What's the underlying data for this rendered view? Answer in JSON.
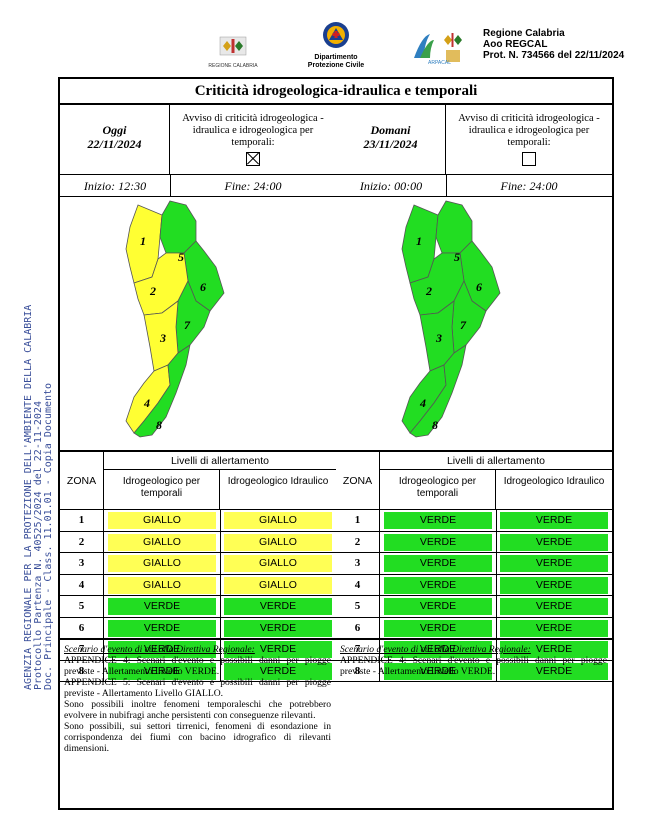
{
  "stamp": {
    "lines": [
      "AGENZIA REGIONALE PER LA PROTEZIONE DELL'AMBIENTE DELLA CALABRIA",
      "Protocollo Partenza N. 40525/2024 del 22-11-2024",
      "Doc. Principale - Class. 11.01.01 - Copia Documento"
    ]
  },
  "header": {
    "logo_regione_caption": "REGIONE CALABRIA",
    "logo_pc_caption_1": "Dipartimento",
    "logo_pc_caption_2": "Protezione Civile",
    "logo_arpa_caption": "ARPACAL",
    "text_1": "Regione Calabria",
    "text_2": "Aoo REGCAL",
    "text_3": "Prot. N. 734566 del 22/11/2024"
  },
  "title": "Criticità idrogeologica-idraulica e temporali",
  "days": [
    {
      "label": "Oggi",
      "date": "22/11/2024",
      "avviso": "Avviso di criticità idrogeologica - idraulica e idrogeologica per temporali:",
      "checked": true,
      "inizio": "Inizio: 12:30",
      "fine": "Fine: 24:00",
      "zone_colors": [
        "#ffff33",
        "#ffff33",
        "#ffff33",
        "#ffff33",
        "#22dd22",
        "#22dd22",
        "#22dd22",
        "#22dd22"
      ],
      "header_zona": "ZONA",
      "header_livelli": "Livelli di allertamento",
      "header_a": "Idrogeologico per temporali",
      "header_b": "Idrogeologico Idraulico",
      "rows": [
        {
          "zona": "1",
          "a": "GIALLO",
          "b": "GIALLO",
          "ca": "#ffff55",
          "cb": "#ffff55"
        },
        {
          "zona": "2",
          "a": "GIALLO",
          "b": "GIALLO",
          "ca": "#ffff55",
          "cb": "#ffff55"
        },
        {
          "zona": "3",
          "a": "GIALLO",
          "b": "GIALLO",
          "ca": "#ffff55",
          "cb": "#ffff55"
        },
        {
          "zona": "4",
          "a": "GIALLO",
          "b": "GIALLO",
          "ca": "#ffff55",
          "cb": "#ffff55"
        },
        {
          "zona": "5",
          "a": "VERDE",
          "b": "VERDE",
          "ca": "#22dd22",
          "cb": "#22dd22"
        },
        {
          "zona": "6",
          "a": "VERDE",
          "b": "VERDE",
          "ca": "#22dd22",
          "cb": "#22dd22"
        },
        {
          "zona": "7",
          "a": "VERDE",
          "b": "VERDE",
          "ca": "#22dd22",
          "cb": "#22dd22"
        },
        {
          "zona": "8",
          "a": "VERDE",
          "b": "VERDE",
          "ca": "#22dd22",
          "cb": "#22dd22"
        }
      ],
      "scenario_heading": "Scenario d'evento di cui alla Direttiva Regionale:",
      "scenario_text": "APPENDICE 4: Scenari d'evento e possibili danni per piogge previste - Allertamento Livello VERDE.\nAPPENDICE 5: Scenari d'evento e possibili danni per piogge previste - Allertamento Livello GIALLO.\nSono possibili inoltre fenomeni temporaleschi che potrebbero evolvere in nubifragi anche persistenti con conseguenze rilevanti.\nSono possibili, sui settori tirrenici, fenomeni di esondazione in corrispondenza dei fiumi con bacino idrografico di rilevanti dimensioni."
    },
    {
      "label": "Domani",
      "date": "23/11/2024",
      "avviso": "Avviso di criticità idrogeologica - idraulica e idrogeologica per temporali:",
      "checked": false,
      "inizio": "Inizio: 00:00",
      "fine": "Fine: 24:00",
      "zone_colors": [
        "#22dd22",
        "#22dd22",
        "#22dd22",
        "#22dd22",
        "#22dd22",
        "#22dd22",
        "#22dd22",
        "#22dd22"
      ],
      "header_zona": "ZONA",
      "header_livelli": "Livelli di allertamento",
      "header_a": "Idrogeologico per temporali",
      "header_b": "Idrogeologico Idraulico",
      "rows": [
        {
          "zona": "1",
          "a": "VERDE",
          "b": "VERDE",
          "ca": "#22dd22",
          "cb": "#22dd22"
        },
        {
          "zona": "2",
          "a": "VERDE",
          "b": "VERDE",
          "ca": "#22dd22",
          "cb": "#22dd22"
        },
        {
          "zona": "3",
          "a": "VERDE",
          "b": "VERDE",
          "ca": "#22dd22",
          "cb": "#22dd22"
        },
        {
          "zona": "4",
          "a": "VERDE",
          "b": "VERDE",
          "ca": "#22dd22",
          "cb": "#22dd22"
        },
        {
          "zona": "5",
          "a": "VERDE",
          "b": "VERDE",
          "ca": "#22dd22",
          "cb": "#22dd22"
        },
        {
          "zona": "6",
          "a": "VERDE",
          "b": "VERDE",
          "ca": "#22dd22",
          "cb": "#22dd22"
        },
        {
          "zona": "7",
          "a": "VERDE",
          "b": "VERDE",
          "ca": "#22dd22",
          "cb": "#22dd22"
        },
        {
          "zona": "8",
          "a": "VERDE",
          "b": "VERDE",
          "ca": "#22dd22",
          "cb": "#22dd22"
        }
      ],
      "scenario_heading": "Scenario d'evento di cui alla Direttiva Regionale:",
      "scenario_text": "APPENDICE 4: Scenari d'evento e possibili danni per piogge previste - Allertamento Livello VERDE."
    }
  ]
}
